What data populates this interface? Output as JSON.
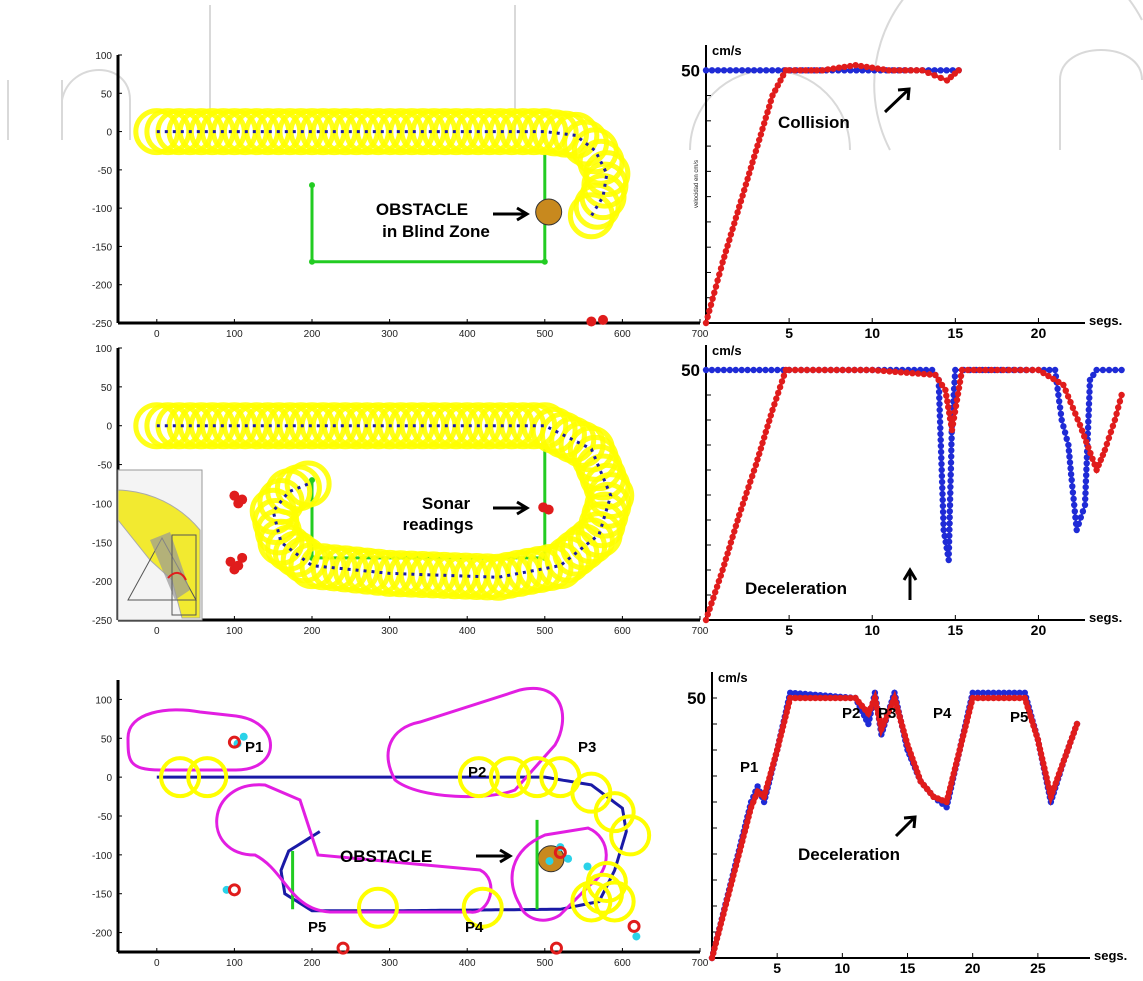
{
  "chart_data": [
    {
      "id": "trajectory-1",
      "type": "scatter",
      "xlim": [
        -50,
        700
      ],
      "ylim": [
        -250,
        100
      ],
      "xticks": [
        "0",
        "100",
        "200",
        "300",
        "400",
        "500",
        "600",
        "700"
      ],
      "yticks": [
        "100",
        "50",
        "0",
        "-50",
        "-100",
        "-150",
        "-200",
        "-250"
      ],
      "annotations": [
        {
          "lines": [
            "OBSTACLE",
            "in Blind Zone"
          ]
        }
      ],
      "path": [
        [
          0,
          0
        ],
        [
          100,
          0
        ],
        [
          200,
          0
        ],
        [
          300,
          0
        ],
        [
          400,
          0
        ],
        [
          500,
          0
        ],
        [
          540,
          -5
        ],
        [
          565,
          -25
        ],
        [
          580,
          -55
        ],
        [
          575,
          -85
        ],
        [
          560,
          -110
        ]
      ],
      "obstacle": [
        505,
        -105
      ],
      "walls": [
        [
          [
            200,
            -70
          ],
          [
            200,
            -170
          ]
        ],
        [
          [
            200,
            -170
          ],
          [
            500,
            -170
          ]
        ],
        [
          [
            500,
            -170
          ],
          [
            500,
            -30
          ]
        ]
      ],
      "red_points": [
        [
          560,
          -248
        ],
        [
          575,
          -246
        ]
      ]
    },
    {
      "id": "velocity-1",
      "type": "line",
      "unit": "cm/s",
      "ylabel": "velocidad en cm/s",
      "xlabel": "segs.",
      "xticks": [
        "5",
        "10",
        "15",
        "20"
      ],
      "ymark": "50",
      "annotations": [
        "Collision"
      ],
      "series": [
        {
          "x": [
            0,
            15.2
          ],
          "y": [
            50,
            50
          ]
        },
        {
          "x": [
            0,
            1,
            2,
            3,
            4,
            4.8,
            5,
            7,
            9,
            11,
            13,
            14.5,
            15.2
          ],
          "y": [
            0,
            12,
            23,
            34,
            45,
            50,
            50,
            50,
            51,
            50,
            50,
            48,
            50
          ]
        }
      ]
    },
    {
      "id": "trajectory-2",
      "type": "scatter",
      "xlim": [
        -50,
        700
      ],
      "ylim": [
        -250,
        100
      ],
      "xticks": [
        "0",
        "100",
        "200",
        "300",
        "400",
        "500",
        "600",
        "700"
      ],
      "yticks": [
        "100",
        "50",
        "0",
        "-50",
        "-100",
        "-150",
        "-200",
        "-250"
      ],
      "annotations": [
        {
          "lines": [
            "Sonar",
            "readings"
          ]
        }
      ],
      "path": [
        [
          0,
          0
        ],
        [
          100,
          0
        ],
        [
          200,
          0
        ],
        [
          300,
          0
        ],
        [
          400,
          0
        ],
        [
          500,
          0
        ],
        [
          560,
          -30
        ],
        [
          585,
          -90
        ],
        [
          570,
          -140
        ],
        [
          520,
          -180
        ],
        [
          440,
          -195
        ],
        [
          300,
          -190
        ],
        [
          200,
          -180
        ],
        [
          160,
          -150
        ],
        [
          150,
          -110
        ],
        [
          170,
          -85
        ],
        [
          195,
          -75
        ]
      ],
      "walls": [
        [
          [
            200,
            -70
          ],
          [
            200,
            -170
          ]
        ],
        [
          [
            200,
            -170
          ],
          [
            500,
            -170
          ]
        ],
        [
          [
            500,
            -170
          ],
          [
            500,
            -30
          ]
        ]
      ],
      "red_points": [
        [
          100,
          -90
        ],
        [
          110,
          -95
        ],
        [
          105,
          -100
        ],
        [
          95,
          -175
        ],
        [
          105,
          -180
        ],
        [
          100,
          -185
        ],
        [
          110,
          -170
        ],
        [
          498,
          -105
        ],
        [
          505,
          -108
        ]
      ]
    },
    {
      "id": "velocity-2",
      "type": "line",
      "unit": "cm/s",
      "xlabel": "segs.",
      "xticks": [
        "5",
        "10",
        "15",
        "20"
      ],
      "ymark": "50",
      "annotations": [
        "Deceleration"
      ],
      "series": [
        {
          "x": [
            0,
            13.6,
            14.0,
            14.3,
            14.6,
            14.8,
            15.0,
            15.5,
            20,
            21,
            21.4,
            21.8,
            22,
            22.3,
            22.8,
            23.1,
            23.5,
            25
          ],
          "y": [
            50,
            50,
            48,
            18,
            12,
            40,
            50,
            50,
            50,
            50,
            40,
            35,
            28,
            18,
            23,
            48,
            50,
            50
          ]
        },
        {
          "x": [
            0,
            1,
            2,
            3,
            4,
            4.8,
            5,
            10,
            13.8,
            14.4,
            14.8,
            15.4,
            20,
            21.5,
            22.5,
            23.5,
            24,
            24.6,
            25
          ],
          "y": [
            0,
            10,
            21,
            31,
            42,
            50,
            50,
            50,
            49,
            46,
            38,
            50,
            50,
            47,
            39,
            30,
            34,
            40,
            45
          ]
        }
      ]
    },
    {
      "id": "trajectory-3",
      "type": "scatter",
      "xlim": [
        -50,
        700
      ],
      "ylim": [
        -225,
        125
      ],
      "xticks": [
        "0",
        "100",
        "200",
        "300",
        "400",
        "500",
        "600",
        "700"
      ],
      "yticks": [
        "100",
        "50",
        "0",
        "-50",
        "-100",
        "-150",
        "-200"
      ],
      "annotations": [
        {
          "lines": [
            "OBSTACLE"
          ]
        }
      ],
      "point_labels": [
        "P1",
        "P2",
        "P3",
        "P4",
        "P5"
      ],
      "path": [
        [
          0,
          0
        ],
        [
          500,
          0
        ],
        [
          560,
          -10
        ],
        [
          600,
          -40
        ],
        [
          605,
          -70
        ],
        [
          590,
          -120
        ],
        [
          570,
          -160
        ],
        [
          520,
          -170
        ],
        [
          300,
          -172
        ],
        [
          200,
          -172
        ],
        [
          165,
          -150
        ],
        [
          160,
          -120
        ],
        [
          170,
          -95
        ],
        [
          210,
          -70
        ]
      ],
      "obstacle": [
        508,
        -105
      ]
    },
    {
      "id": "velocity-3",
      "type": "line",
      "unit": "cm/s",
      "xlabel": "segs.",
      "xticks": [
        "5",
        "10",
        "15",
        "20",
        "25"
      ],
      "ymark": "50",
      "annotations": [
        "P1",
        "P2",
        "P3",
        "P4",
        "P5",
        "Deceleration"
      ],
      "series": [
        {
          "x": [
            0,
            3,
            3.5,
            4,
            5,
            6,
            11,
            12,
            12.5,
            13,
            14,
            15,
            16,
            17,
            18,
            19,
            20,
            24,
            25,
            26,
            27,
            28
          ],
          "y": [
            0,
            30,
            33,
            30,
            40,
            51,
            50,
            45,
            51,
            43,
            51,
            40,
            34,
            31,
            29,
            40,
            51,
            51,
            42,
            30,
            38,
            45
          ]
        },
        {
          "x": [
            0,
            3,
            3.5,
            4,
            5,
            6,
            11,
            12,
            12.5,
            13,
            14,
            15,
            16,
            17,
            18,
            19,
            20,
            24,
            25,
            26,
            27,
            28
          ],
          "y": [
            0,
            29,
            32,
            31,
            40,
            50,
            50,
            47,
            50,
            44,
            50,
            41,
            34,
            31,
            30,
            40,
            50,
            50,
            42,
            31,
            38,
            45
          ]
        }
      ]
    }
  ],
  "watermark": {
    "text": "In",
    "color": "#d9d9d9"
  },
  "colors": {
    "ring": "#ffff00",
    "ring_stroke": "#e6e600",
    "path": "#1a1aa6",
    "wall": "#22cc22",
    "red": "#e01c1c",
    "blue": "#1f2bd6",
    "magenta": "#e21ee2",
    "obstacle": "#c8891e",
    "cyan": "#2ad2e8"
  }
}
